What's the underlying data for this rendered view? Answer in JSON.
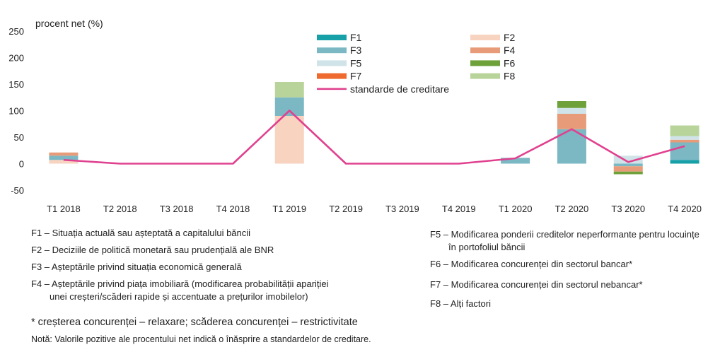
{
  "chart_data": {
    "type": "bar",
    "stacked": true,
    "ylabel": "procent net (%)",
    "ylim": [
      -50,
      250
    ],
    "yticks": [
      250,
      200,
      150,
      100,
      50,
      0,
      -50
    ],
    "categories": [
      "T1 2018",
      "T2 2018",
      "T3 2018",
      "T4 2018",
      "T1 2019",
      "T2 2019",
      "T3 2019",
      "T4 2019",
      "T1 2020",
      "T2 2020",
      "T3 2020",
      "T4 2020"
    ],
    "series": [
      {
        "name": "F1",
        "color": "#17a0a8",
        "values": [
          0,
          0,
          0,
          0,
          0,
          0,
          0,
          0,
          0,
          0,
          0,
          7
        ]
      },
      {
        "name": "F2",
        "color": "#f7d3c0",
        "values": [
          7,
          0,
          0,
          0,
          90,
          0,
          0,
          0,
          0,
          0,
          0,
          0
        ]
      },
      {
        "name": "F3",
        "color": "#7bb8c4",
        "values": [
          8,
          0,
          0,
          0,
          35,
          0,
          0,
          0,
          11,
          65,
          -5,
          33
        ]
      },
      {
        "name": "F4",
        "color": "#e89b78",
        "values": [
          6,
          0,
          0,
          0,
          0,
          0,
          0,
          0,
          0,
          29,
          -10,
          5
        ]
      },
      {
        "name": "F5",
        "color": "#cfe3e8",
        "values": [
          0,
          0,
          0,
          0,
          0,
          0,
          0,
          0,
          0,
          11,
          15,
          7
        ]
      },
      {
        "name": "F6",
        "color": "#6ea13a",
        "values": [
          0,
          0,
          0,
          0,
          0,
          0,
          0,
          0,
          0,
          13,
          -5,
          0
        ]
      },
      {
        "name": "F7",
        "color": "#ef6a2f",
        "values": [
          0,
          0,
          0,
          0,
          0,
          0,
          0,
          0,
          0,
          0,
          0,
          0
        ]
      },
      {
        "name": "F8",
        "color": "#b8d49a",
        "values": [
          0,
          0,
          0,
          0,
          29,
          0,
          0,
          0,
          0,
          0,
          0,
          20
        ]
      }
    ],
    "line": {
      "name": "standarde de creditare",
      "color": "#e0418f",
      "values": [
        7,
        0,
        0,
        0,
        100,
        0,
        0,
        0,
        10,
        65,
        3,
        33
      ]
    },
    "grid": false,
    "legend_position": "top"
  },
  "notes_left": [
    "F1 – Situația actuală sau așteptată a capitalului  băncii",
    "F2 – Deciziile de politică monetară sau prudențială ale BNR",
    "F3 – Așteptările privind situația economică  generală",
    "F4 – Așteptările privind piața imobiliară  (modificarea probabilității  apariției",
    "unei creșteri/scăderi rapide și accentuate  a prețurilor imobilelor)"
  ],
  "notes_right": [
    "F5 – Modificarea ponderii creditelor neperformante pentru locuințe",
    "în portofoliul băncii",
    "F6 – Modificarea concurenței din sectorul bancar*",
    "F7 – Modificarea concurenței din sectorul nebancar*",
    "F8 – Alți factori"
  ],
  "footnote_star": "* creșterea concurenței – relaxare; scăderea concurenței – restrictivitate",
  "footnote_nota": "Notă: Valorile pozitive ale procentului net indică o înăsprire a standardelor de creditare."
}
